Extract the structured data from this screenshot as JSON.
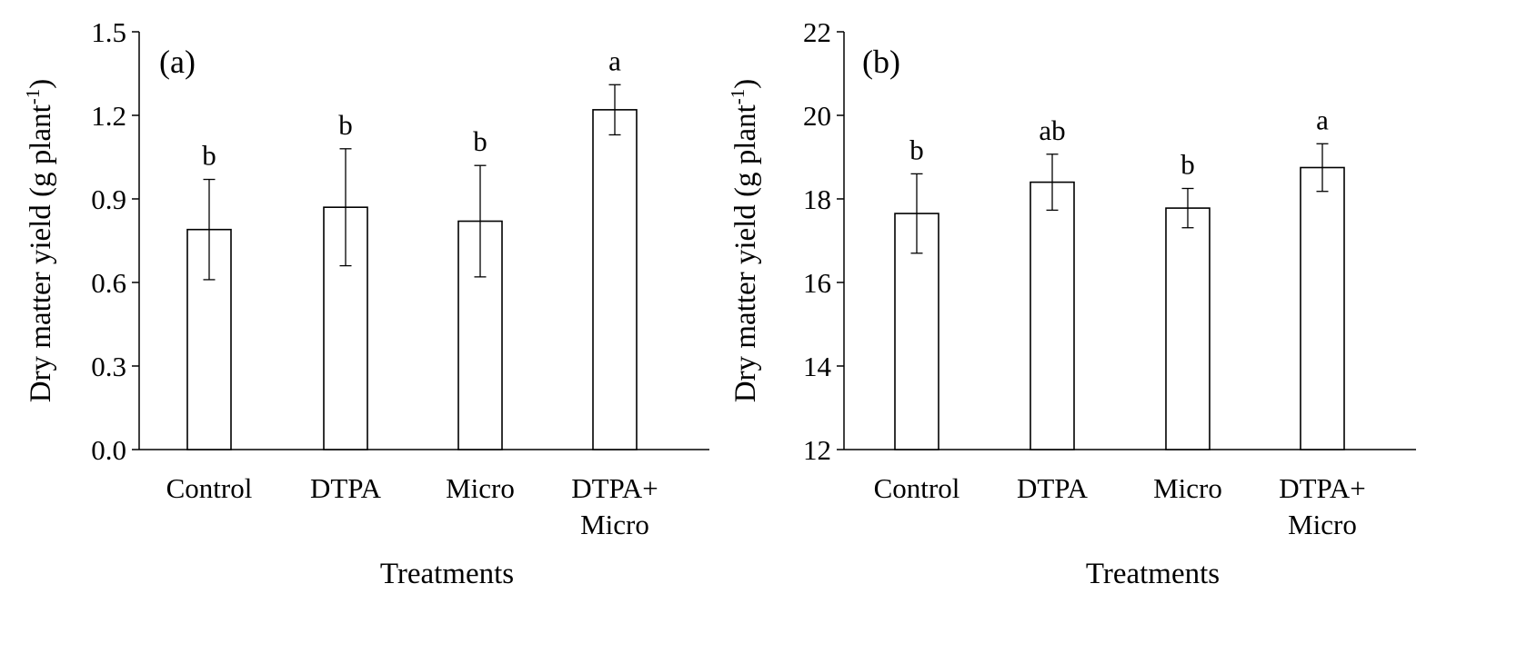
{
  "chart_data": [
    {
      "type": "bar",
      "panel_label": "(a)",
      "categories": [
        [
          "Control"
        ],
        [
          "DTPA"
        ],
        [
          "Micro"
        ],
        [
          "DTPA+",
          "Micro"
        ]
      ],
      "values": [
        0.79,
        0.87,
        0.82,
        1.22
      ],
      "error": [
        0.18,
        0.21,
        0.2,
        0.09
      ],
      "significance": [
        "b",
        "b",
        "b",
        "a"
      ],
      "ylim": [
        0,
        1.5
      ],
      "yticks": [
        "0.0",
        "0.3",
        "0.6",
        "0.9",
        "1.2",
        "1.5"
      ],
      "ylabel": "Dry matter yield (g plant",
      "ylabel_sup": "-1",
      "ylabel_end": ")",
      "xlabel": "Treatments",
      "bar_fill": "#ffffff",
      "bar_stroke": "#000000"
    },
    {
      "type": "bar",
      "panel_label": "(b)",
      "categories": [
        [
          "Control"
        ],
        [
          "DTPA"
        ],
        [
          "Micro"
        ],
        [
          "DTPA+",
          "Micro"
        ]
      ],
      "values": [
        17.65,
        18.4,
        17.78,
        18.75
      ],
      "error": [
        0.95,
        0.67,
        0.47,
        0.57
      ],
      "significance": [
        "b",
        "ab",
        "b",
        "a"
      ],
      "ylim": [
        12,
        22
      ],
      "yticks": [
        "12",
        "14",
        "16",
        "18",
        "20",
        "22"
      ],
      "ylabel": "Dry matter yield (g plant",
      "ylabel_sup": "-1",
      "ylabel_end": ")",
      "xlabel": "Treatments",
      "bar_fill": "#ffffff",
      "bar_stroke": "#000000"
    }
  ]
}
